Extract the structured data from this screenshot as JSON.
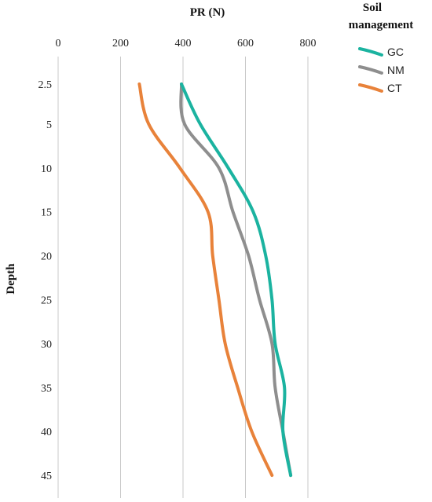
{
  "chart_data": {
    "type": "line",
    "xlabel": "PR (N)",
    "ylabel": "Depth",
    "xlim": [
      0,
      800
    ],
    "ylim": [
      2.5,
      45
    ],
    "x_ticks": [
      0,
      200,
      400,
      600,
      800
    ],
    "y_ticks": [
      2.5,
      5,
      10,
      15,
      20,
      25,
      30,
      35,
      40,
      45
    ],
    "grid": "vertical",
    "x_axis_position": "top",
    "y_axis_inverted": true,
    "legend": {
      "title_line1": "Soil",
      "title_line2": "management",
      "placement": "top-right"
    },
    "series": [
      {
        "name": "GC",
        "color": "#1bb3a0",
        "depth": [
          2.5,
          5,
          10,
          15,
          20,
          25,
          30,
          35,
          40,
          45
        ],
        "values": [
          395,
          455,
          545,
          625,
          665,
          685,
          695,
          725,
          720,
          745
        ]
      },
      {
        "name": "NM",
        "color": "#8e8e8e",
        "depth": [
          2.5,
          5,
          10,
          15,
          20,
          25,
          30,
          35,
          40,
          45
        ],
        "values": [
          395,
          405,
          515,
          560,
          610,
          645,
          685,
          695,
          720,
          745
        ]
      },
      {
        "name": "CT",
        "color": "#e8823a",
        "depth": [
          2.5,
          5,
          10,
          15,
          20,
          25,
          30,
          35,
          40,
          45
        ],
        "values": [
          260,
          290,
          390,
          480,
          495,
          515,
          535,
          575,
          620,
          685
        ]
      }
    ]
  }
}
